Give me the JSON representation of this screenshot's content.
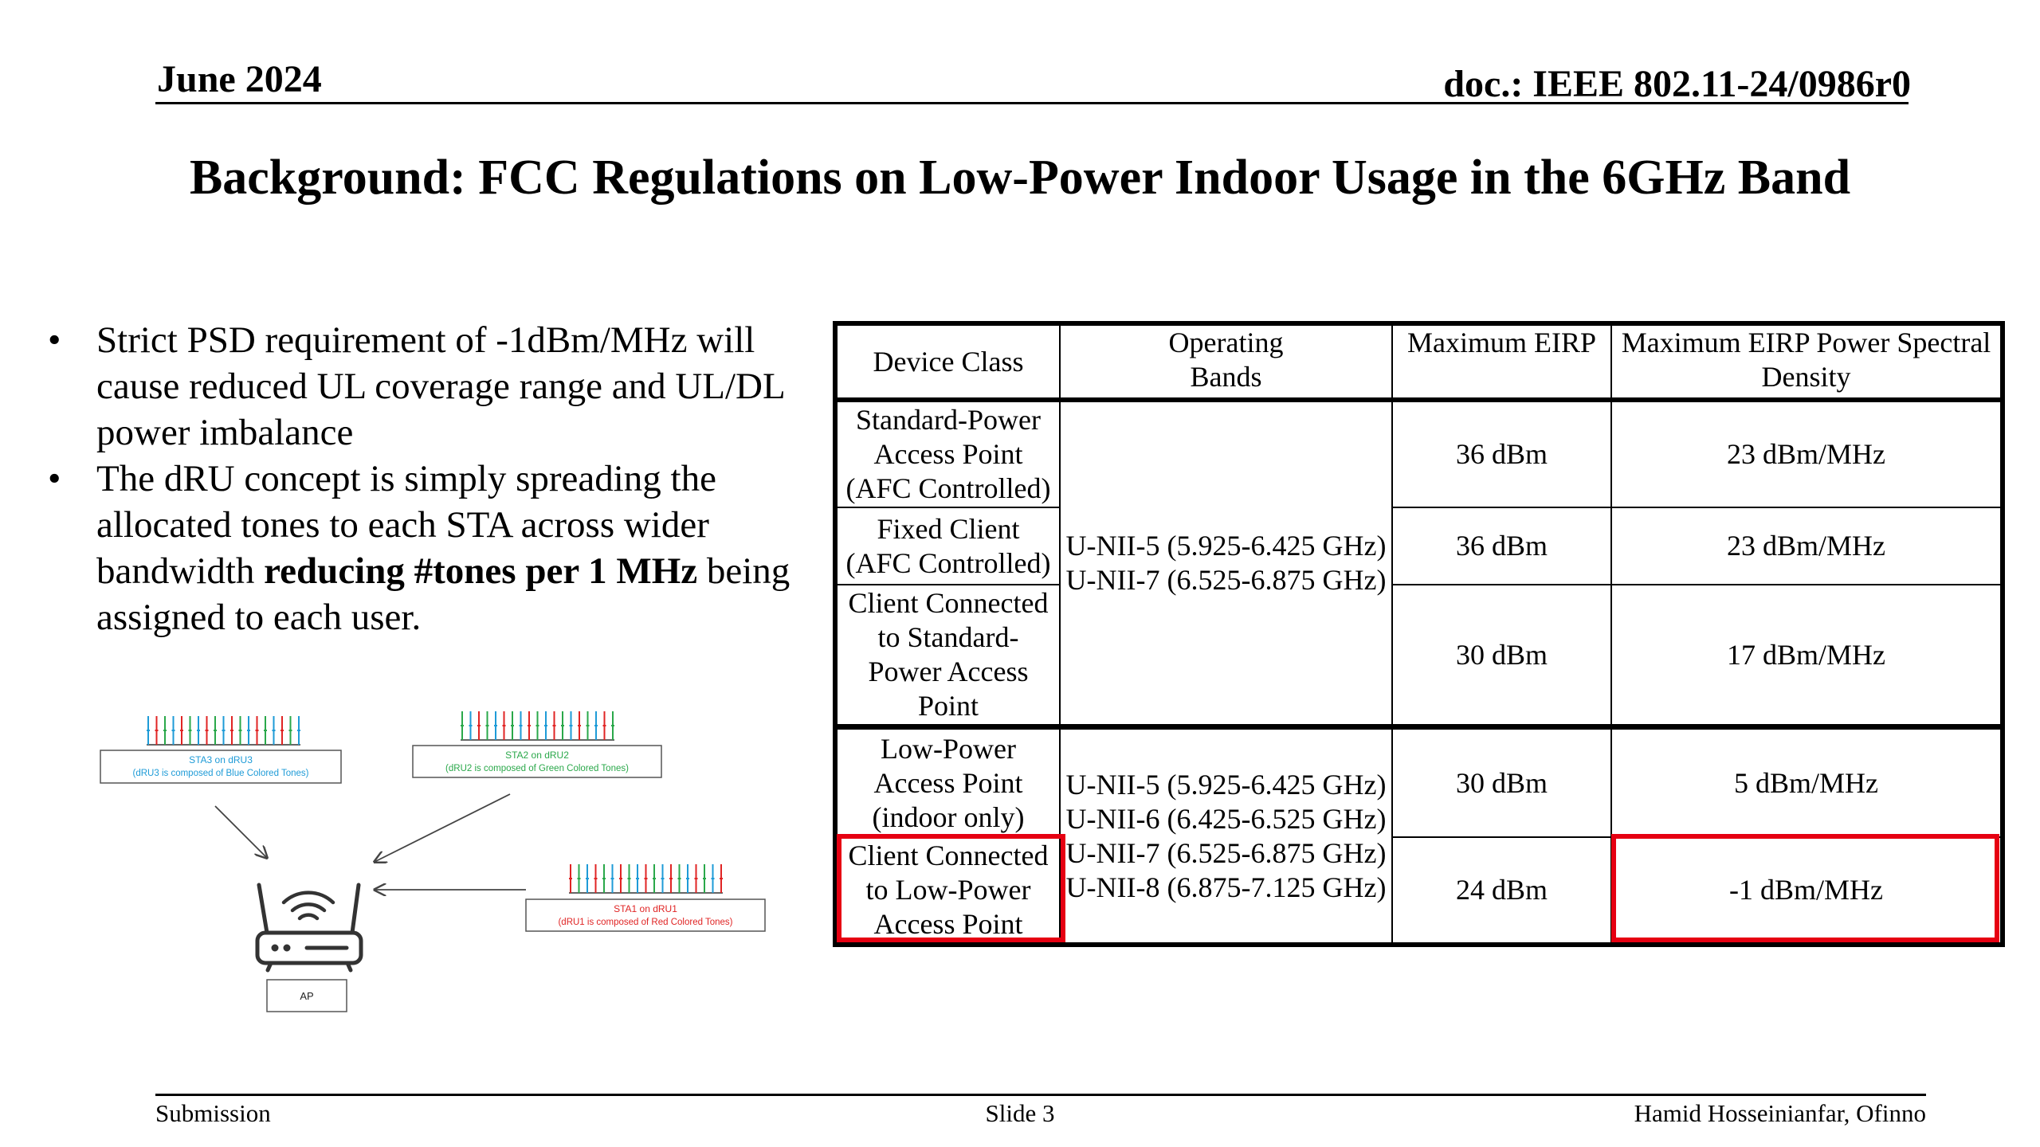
{
  "header": {
    "date": "June 2024",
    "doc": "doc.: IEEE 802.11-24/0986r0"
  },
  "slide_title": "Background: FCC Regulations on Low-Power Indoor Usage in the 6GHz Band",
  "bullets": [
    {
      "text": "Strict PSD requirement  of -1dBm/MHz will cause reduced UL coverage range and UL/DL power imbalance"
    },
    {
      "before": "The dRU concept is simply spreading the allocated tones to each STA across wider bandwidth ",
      "bold": "reducing #tones per 1 MHz",
      "after": " being assigned to each user."
    }
  ],
  "bullet_char": "•",
  "diagram": {
    "sta3": {
      "title": "STA3 on dRU3",
      "desc": "(dRU3 is composed of Blue Colored Tones)",
      "color": "#1e9bd7"
    },
    "sta2": {
      "title": "STA2 on dRU2",
      "desc": "(dRU2 is composed of Green Colored Tones)",
      "color": "#2aa84a"
    },
    "sta1": {
      "title": "STA1 on dRU1",
      "desc": "(dRU1 is composed of Red Colored Tones)",
      "color": "#e02424"
    },
    "ap_label": "AP",
    "icons": [
      "router-icon",
      "wifi-signal-icon"
    ]
  },
  "table": {
    "headers": [
      "Device Class",
      "Operating Bands",
      "Maximum EIRP",
      "Maximum EIRP Power Spectral Density"
    ],
    "rows": [
      {
        "device": "Standard-Power Access Point (AFC Controlled)",
        "eirp": "36 dBm",
        "psd": "23 dBm/MHz"
      },
      {
        "device": "Fixed Client (AFC Controlled)",
        "eirp": "36 dBm",
        "psd": "23 dBm/MHz"
      },
      {
        "device": "Client Connected to Standard-Power Access Point",
        "eirp": "30 dBm",
        "psd": "17 dBm/MHz"
      },
      {
        "device": "Low-Power Access Point (indoor only)",
        "eirp": "30 dBm",
        "psd": "5 dBm/MHz"
      },
      {
        "device": "Client Connected to Low-Power Access Point",
        "eirp": "24 dBm",
        "psd": "-1 dBm/MHz"
      }
    ],
    "bands_group1": [
      "U-NII-5 (5.925-6.425 GHz)",
      "U-NII-7 (6.525-6.875 GHz)"
    ],
    "bands_group2": [
      "U-NII-5 (5.925-6.425 GHz)",
      "U-NII-6 (6.425-6.525 GHz)",
      "U-NII-7 (6.525-6.875 GHz)",
      "U-NII-8 (6.875-7.125 GHz)"
    ],
    "highlight_color": "#e60012"
  },
  "footer": {
    "left": "Submission",
    "center": "Slide 3",
    "right": "Hamid Hosseinianfar, Ofinno"
  }
}
